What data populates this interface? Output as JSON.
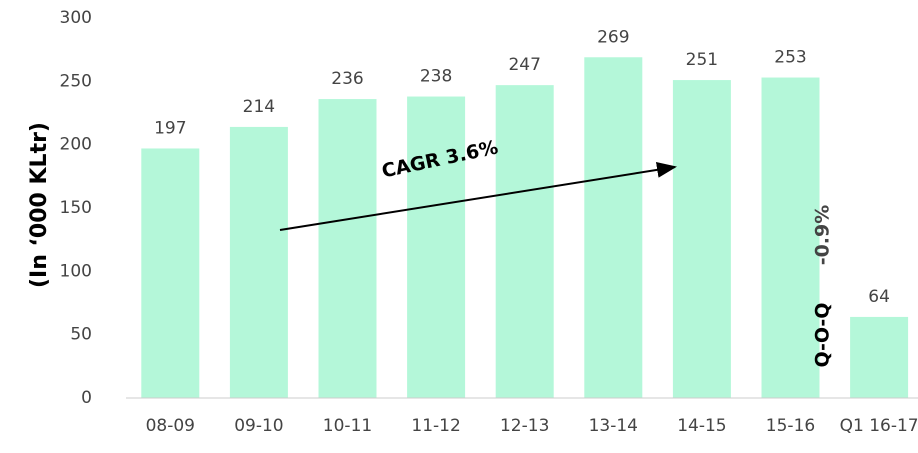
{
  "chart_data": {
    "type": "bar",
    "y_label": "(In ‘000 KLtr)",
    "categories": [
      "08-09",
      "09-10",
      "10-11",
      "11-12",
      "12-13",
      "13-14",
      "14-15",
      "15-16",
      "Q1 16-17"
    ],
    "values": [
      197,
      214,
      236,
      238,
      247,
      269,
      251,
      253,
      64
    ],
    "color": "#b4f7d9",
    "ylim": [
      0,
      300
    ],
    "yticks": [
      0,
      50,
      100,
      150,
      200,
      250,
      300
    ],
    "grid": false,
    "annotations": [
      {
        "text": "CAGR 3.6%"
      },
      {
        "text": "Q-O-Q"
      },
      {
        "text": "-0.9%",
        "color": "#ff0000"
      }
    ]
  }
}
